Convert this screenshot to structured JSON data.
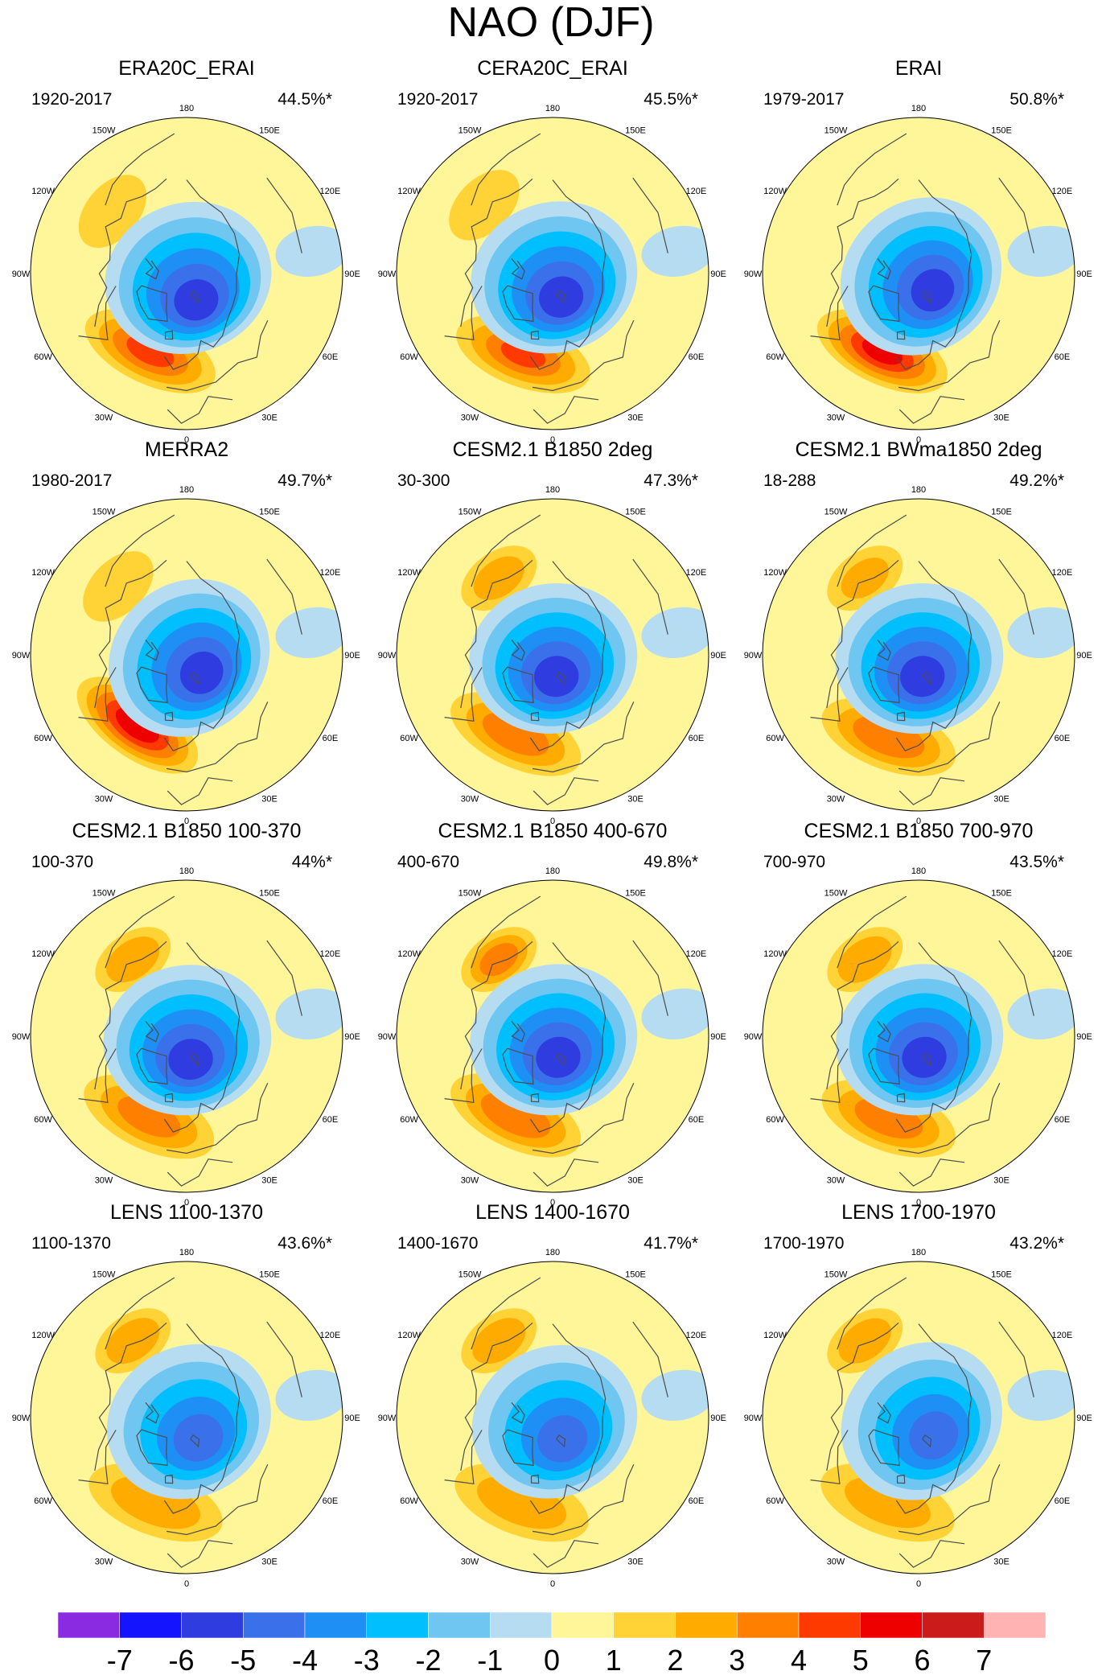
{
  "figure_title": "NAO (DJF)",
  "colors": {
    "land_outline": "#4d4d4d",
    "map_border": "#000000",
    "background": "#ffffff"
  },
  "chart_data": {
    "type": "heatmap",
    "projection": "north-polar-stereographic",
    "variable": "NAO pattern (DJF)",
    "longitude_labels": {
      "180": "180",
      "150E": "150E",
      "120E": "120E",
      "90E": "90E",
      "60E": "60E",
      "30E": "30E",
      "0": "0",
      "30W": "30W",
      "60W": "60W",
      "90W": "90W",
      "120W": "120W",
      "150W": "150W"
    },
    "colorbar": {
      "levels": [
        -7,
        -6,
        -5,
        -4,
        -3,
        -2,
        -1,
        0,
        1,
        2,
        3,
        4,
        5,
        6,
        7
      ],
      "tick_labels": [
        "-7",
        "-6",
        "-5",
        "-4",
        "-3",
        "-2",
        "-1",
        "0",
        "1",
        "2",
        "3",
        "4",
        "5",
        "6",
        "7"
      ],
      "colors": [
        "#8a2be2",
        "#1414ff",
        "#2f3de0",
        "#3a70ea",
        "#1e8ff5",
        "#00bfff",
        "#6fc6f0",
        "#b6dcf2",
        "#fff599",
        "#ffd235",
        "#ffab00",
        "#ff7f00",
        "#ff3a00",
        "#ee0000",
        "#cc1b1b",
        "#ffb3b3"
      ]
    },
    "panels": [
      {
        "title": "ERA20C_ERAI",
        "period": "1920-2017",
        "variance": "44.5%*",
        "pattern": {
          "low": {
            "lon": 20,
            "r": 0.18,
            "peak": -5.4
          },
          "high_atlantic": {
            "lon": -25,
            "r": 0.55,
            "peak": 4.2
          },
          "high_pacific": {
            "lon": -130,
            "r": 0.62,
            "peak": 1.6
          }
        }
      },
      {
        "title": "CERA20C_ERAI",
        "period": "1920-2017",
        "variance": "45.5%*",
        "pattern": {
          "low": {
            "lon": 20,
            "r": 0.16,
            "peak": -5.2
          },
          "high_atlantic": {
            "lon": -20,
            "r": 0.55,
            "peak": 4.0
          },
          "high_pacific": {
            "lon": -135,
            "r": 0.62,
            "peak": 1.4
          }
        }
      },
      {
        "title": "ERAI",
        "period": "1979-2017",
        "variance": "50.8%*",
        "pattern": {
          "low": {
            "lon": 40,
            "r": 0.14,
            "peak": -5.4
          },
          "high_atlantic": {
            "lon": -25,
            "r": 0.55,
            "peak": 5.2
          },
          "high_pacific": {
            "lon": -135,
            "r": 0.62,
            "peak": 0.8
          }
        }
      },
      {
        "title": "MERRA2",
        "period": "1980-2017",
        "variance": "49.7%*",
        "pattern": {
          "low": {
            "lon": 40,
            "r": 0.15,
            "peak": -5.6
          },
          "high_atlantic": {
            "lon": -35,
            "r": 0.55,
            "peak": 5.6
          },
          "high_pacific": {
            "lon": -135,
            "r": 0.62,
            "peak": 1.2
          }
        }
      },
      {
        "title": "CESM2.1 B1850 2deg",
        "period": "30-300",
        "variance": "47.3%*",
        "pattern": {
          "low": {
            "lon": 10,
            "r": 0.14,
            "peak": -5.2
          },
          "high_atlantic": {
            "lon": -25,
            "r": 0.56,
            "peak": 3.6
          },
          "high_pacific": {
            "lon": -145,
            "r": 0.6,
            "peak": 2.3
          }
        }
      },
      {
        "title": "CESM2.1 BWma1850 2deg",
        "period": "18-288",
        "variance": "49.2%*",
        "pattern": {
          "low": {
            "lon": 10,
            "r": 0.14,
            "peak": -5.2
          },
          "high_atlantic": {
            "lon": -20,
            "r": 0.56,
            "peak": 3.8
          },
          "high_pacific": {
            "lon": -145,
            "r": 0.6,
            "peak": 2.0
          }
        }
      },
      {
        "title": "CESM2.1 B1850 100-370",
        "period": "100-370",
        "variance": "44%*",
        "pattern": {
          "low": {
            "lon": 10,
            "r": 0.15,
            "peak": -5.2
          },
          "high_atlantic": {
            "lon": -25,
            "r": 0.57,
            "peak": 3.4
          },
          "high_pacific": {
            "lon": -145,
            "r": 0.6,
            "peak": 2.6
          }
        }
      },
      {
        "title": "CESM2.1 B1850 400-670",
        "period": "400-670",
        "variance": "49.8%*",
        "pattern": {
          "low": {
            "lon": 15,
            "r": 0.14,
            "peak": -6.0
          },
          "high_atlantic": {
            "lon": -25,
            "r": 0.56,
            "peak": 3.8
          },
          "high_pacific": {
            "lon": -145,
            "r": 0.6,
            "peak": 3.2
          }
        }
      },
      {
        "title": "CESM2.1 B1850 700-970",
        "period": "700-970",
        "variance": "43.5%*",
        "pattern": {
          "low": {
            "lon": 15,
            "r": 0.14,
            "peak": -5.2
          },
          "high_atlantic": {
            "lon": -20,
            "r": 0.56,
            "peak": 3.6
          },
          "high_pacific": {
            "lon": -145,
            "r": 0.6,
            "peak": 2.7
          }
        }
      },
      {
        "title": "LENS 1100-1370",
        "period": "1100-1370",
        "variance": "43.6%*",
        "pattern": {
          "low": {
            "lon": 30,
            "r": 0.15,
            "peak": -4.4
          },
          "high_atlantic": {
            "lon": -20,
            "r": 0.58,
            "peak": 2.6
          },
          "high_pacific": {
            "lon": -145,
            "r": 0.6,
            "peak": 2.6
          }
        }
      },
      {
        "title": "LENS 1400-1670",
        "period": "1400-1670",
        "variance": "41.7%*",
        "pattern": {
          "low": {
            "lon": 25,
            "r": 0.15,
            "peak": -4.6
          },
          "high_atlantic": {
            "lon": -20,
            "r": 0.58,
            "peak": 2.6
          },
          "high_pacific": {
            "lon": -145,
            "r": 0.6,
            "peak": 2.6
          }
        }
      },
      {
        "title": "LENS 1700-1970",
        "period": "1700-1970",
        "variance": "43.2%*",
        "pattern": {
          "low": {
            "lon": 40,
            "r": 0.15,
            "peak": -4.6
          },
          "high_atlantic": {
            "lon": -20,
            "r": 0.58,
            "peak": 2.4
          },
          "high_pacific": {
            "lon": -145,
            "r": 0.6,
            "peak": 2.5
          }
        }
      }
    ]
  }
}
